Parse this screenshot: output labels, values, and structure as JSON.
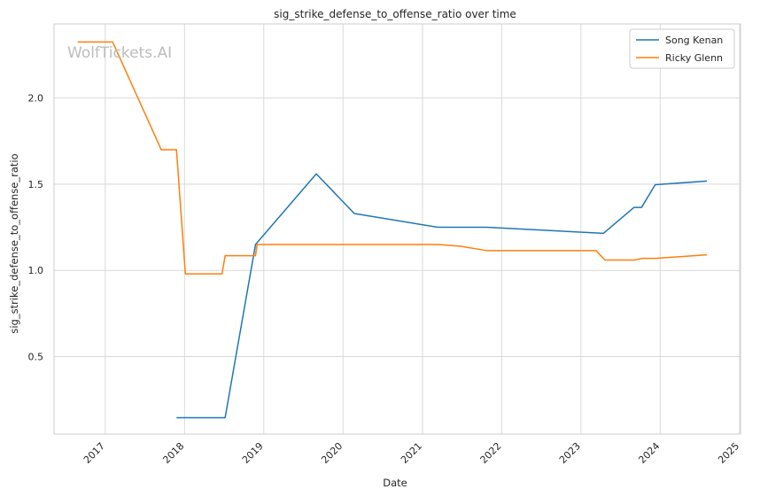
{
  "watermark": "WolfTickets.AI",
  "chart_data": {
    "type": "line",
    "title": "sig_strike_defense_to_offense_ratio over time",
    "xlabel": "Date",
    "ylabel": "sig_strike_defense_to_offense_ratio",
    "xlim": [
      "2016-05-10",
      "2025-01-05"
    ],
    "ylim": [
      0.05,
      2.43
    ],
    "x_ticks": [
      "2017-01-01",
      "2018-01-01",
      "2019-01-01",
      "2020-01-01",
      "2021-01-01",
      "2022-01-01",
      "2023-01-01",
      "2024-01-01",
      "2025-01-01"
    ],
    "x_tick_labels": [
      "2017",
      "2018",
      "2019",
      "2020",
      "2021",
      "2022",
      "2023",
      "2024",
      "2025"
    ],
    "y_ticks": [
      0.5,
      1.0,
      1.5,
      2.0
    ],
    "y_tick_labels": [
      "0.5",
      "1.0",
      "1.5",
      "2.0"
    ],
    "grid": true,
    "legend_position": "top-right",
    "series": [
      {
        "name": "Song Kenan",
        "color": "#1f77b4",
        "points": [
          [
            "2017-11-25",
            0.145
          ],
          [
            "2018-07-07",
            0.145
          ],
          [
            "2018-11-24",
            1.15
          ],
          [
            "2019-08-31",
            1.56
          ],
          [
            "2020-02-22",
            1.33
          ],
          [
            "2021-03-13",
            1.25
          ],
          [
            "2021-10-23",
            1.25
          ],
          [
            "2023-04-15",
            1.215
          ],
          [
            "2023-09-02",
            1.365
          ],
          [
            "2023-10-07",
            1.365
          ],
          [
            "2023-12-09",
            1.497
          ],
          [
            "2024-08-03",
            1.518
          ]
        ]
      },
      {
        "name": "Ricky Glenn",
        "color": "#ff7f0e",
        "points": [
          [
            "2016-08-27",
            2.325
          ],
          [
            "2017-02-04",
            2.325
          ],
          [
            "2017-09-16",
            1.7
          ],
          [
            "2017-11-25",
            1.7
          ],
          [
            "2018-01-05",
            0.98
          ],
          [
            "2018-06-23",
            0.98
          ],
          [
            "2018-07-07",
            1.085
          ],
          [
            "2018-11-24",
            1.085
          ],
          [
            "2018-12-01",
            1.15
          ],
          [
            "2021-03-13",
            1.15
          ],
          [
            "2021-06-26",
            1.14
          ],
          [
            "2021-10-23",
            1.115
          ],
          [
            "2023-03-11",
            1.115
          ],
          [
            "2023-04-22",
            1.06
          ],
          [
            "2023-09-02",
            1.06
          ],
          [
            "2023-10-14",
            1.07
          ],
          [
            "2023-12-09",
            1.07
          ],
          [
            "2024-08-03",
            1.09
          ]
        ]
      }
    ]
  }
}
